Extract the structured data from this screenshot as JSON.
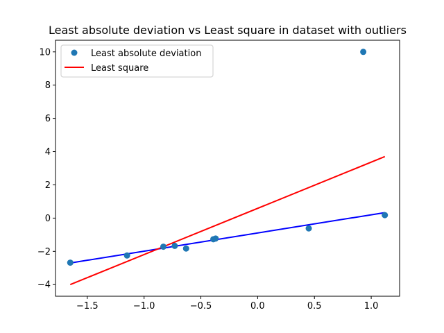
{
  "chart_data": {
    "type": "scatter",
    "title": "Least absolute deviation vs Least square in dataset with outliers",
    "xlabel": "",
    "ylabel": "",
    "xlim": [
      -1.78,
      1.25
    ],
    "ylim": [
      -4.7,
      10.7
    ],
    "xticks": [
      -1.5,
      -1.0,
      -0.5,
      0.0,
      0.5,
      1.0
    ],
    "xtick_labels": [
      "−1.5",
      "−1.0",
      "−0.5",
      "0.0",
      "0.5",
      "1.0"
    ],
    "yticks": [
      -4,
      -2,
      0,
      2,
      4,
      6,
      8,
      10
    ],
    "ytick_labels": [
      "−4",
      "−2",
      "0",
      "2",
      "4",
      "6",
      "8",
      "10"
    ],
    "grid": false,
    "legend_position": "upper-left",
    "series": [
      {
        "name": "Least absolute deviation",
        "kind": "scatter",
        "color": "#1f77b4",
        "x": [
          -1.65,
          -1.15,
          -0.83,
          -0.73,
          -0.63,
          -0.39,
          -0.37,
          0.45,
          0.93,
          1.12
        ],
        "y": [
          -2.68,
          -2.25,
          -1.72,
          -1.67,
          -1.83,
          -1.27,
          -1.23,
          -0.62,
          10.0,
          0.18
        ]
      },
      {
        "name": "",
        "kind": "line",
        "color": "#0000ff",
        "x": [
          -1.65,
          1.12
        ],
        "y": [
          -2.7,
          0.33
        ]
      },
      {
        "name": "Least square",
        "kind": "line",
        "color": "#ff0000",
        "x": [
          -1.65,
          1.12
        ],
        "y": [
          -4.0,
          3.7
        ]
      }
    ]
  }
}
